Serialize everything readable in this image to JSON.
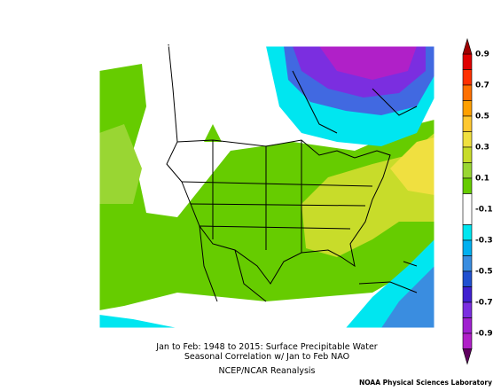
{
  "map": {
    "title_lines": [
      "Jan to Feb: 1948 to 2015: Surface Precipitable Water",
      "Seasonal Correlation w/ Jan to Feb NAO"
    ],
    "source": "NCEP/NCAR Reanalysis",
    "credit": "NOAA Physical Sciences Laboratory"
  },
  "colorbar": {
    "labels": [
      "0.9",
      "0.7",
      "0.5",
      "0.3",
      "0.1",
      "-0.1",
      "-0.3",
      "-0.5",
      "-0.7",
      "-0.9"
    ]
  }
}
